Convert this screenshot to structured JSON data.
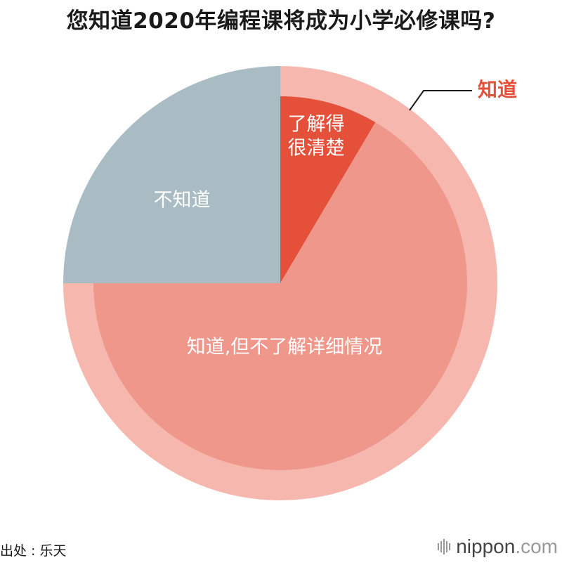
{
  "chart_data": {
    "type": "pie",
    "title": "您知道2020年编程课将成为小学必修课吗?",
    "inner_slices": [
      {
        "label_lines": [
          "了解得",
          "很清楚"
        ],
        "value": 8.5,
        "color": "#e4503a",
        "label_color": "#ffffff"
      },
      {
        "label_lines": [
          "知道,但不了解详细情况"
        ],
        "value": 66.5,
        "color": "#ef978a",
        "label_color": "#ffffff"
      },
      {
        "label_lines": [
          "不知道"
        ],
        "value": 25.0,
        "color": "#a9bcc3",
        "label_color": "#ffffff"
      }
    ],
    "outer_ring": {
      "label": "知道",
      "value": 75.0,
      "color": "#f6b8ae",
      "label_color": "#e4503a"
    }
  },
  "footer": {
    "source": "出处 : 乐天",
    "logo_name": "nippon",
    "logo_suffix": ".com"
  }
}
